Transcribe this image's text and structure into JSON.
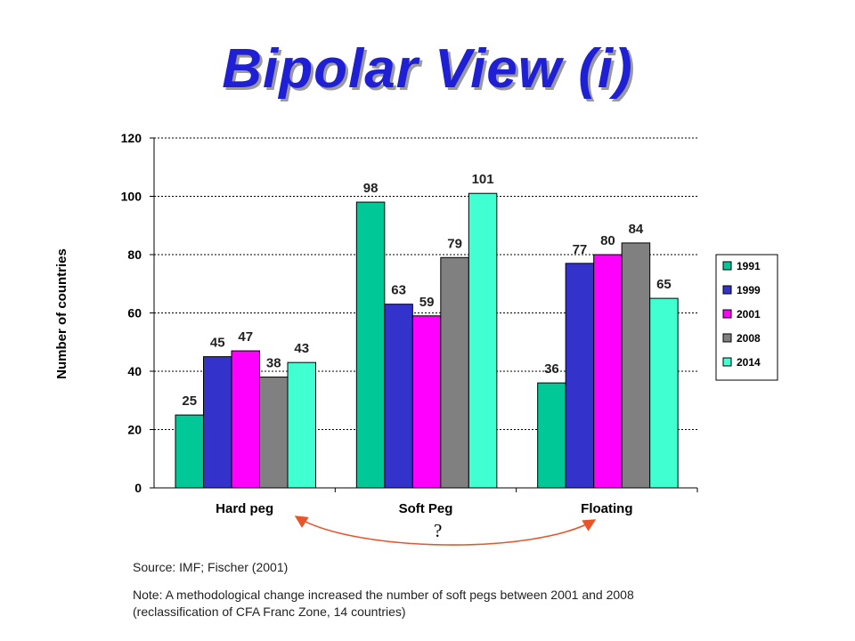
{
  "slide": {
    "title": "Bipolar View (i)",
    "source": "Source: IMF;  Fischer (2001)",
    "note": "Note: A methodological change increased the number of soft pegs between 2001 and 2008 (reclassification of CFA Franc Zone, 14 countries)",
    "arrow_label": "?",
    "arrow_color": "#e8552a"
  },
  "chart_data": {
    "type": "bar",
    "title": "",
    "xlabel": "",
    "ylabel": "Number of countries",
    "categories": [
      "Hard peg",
      "Soft Peg",
      "Floating"
    ],
    "ylim": [
      0,
      120
    ],
    "yticks": [
      0,
      20,
      40,
      60,
      80,
      100,
      120
    ],
    "grid": true,
    "legend_position": "right",
    "series": [
      {
        "name": "1991",
        "color": "#00c896",
        "values": [
          25,
          98,
          36
        ]
      },
      {
        "name": "1999",
        "color": "#3333cc",
        "values": [
          45,
          63,
          77
        ]
      },
      {
        "name": "2001",
        "color": "#ff00ff",
        "values": [
          47,
          59,
          80
        ]
      },
      {
        "name": "2008",
        "color": "#808080",
        "values": [
          38,
          79,
          84
        ]
      },
      {
        "name": "2014",
        "color": "#40ffd0",
        "values": [
          43,
          101,
          65
        ]
      }
    ]
  }
}
